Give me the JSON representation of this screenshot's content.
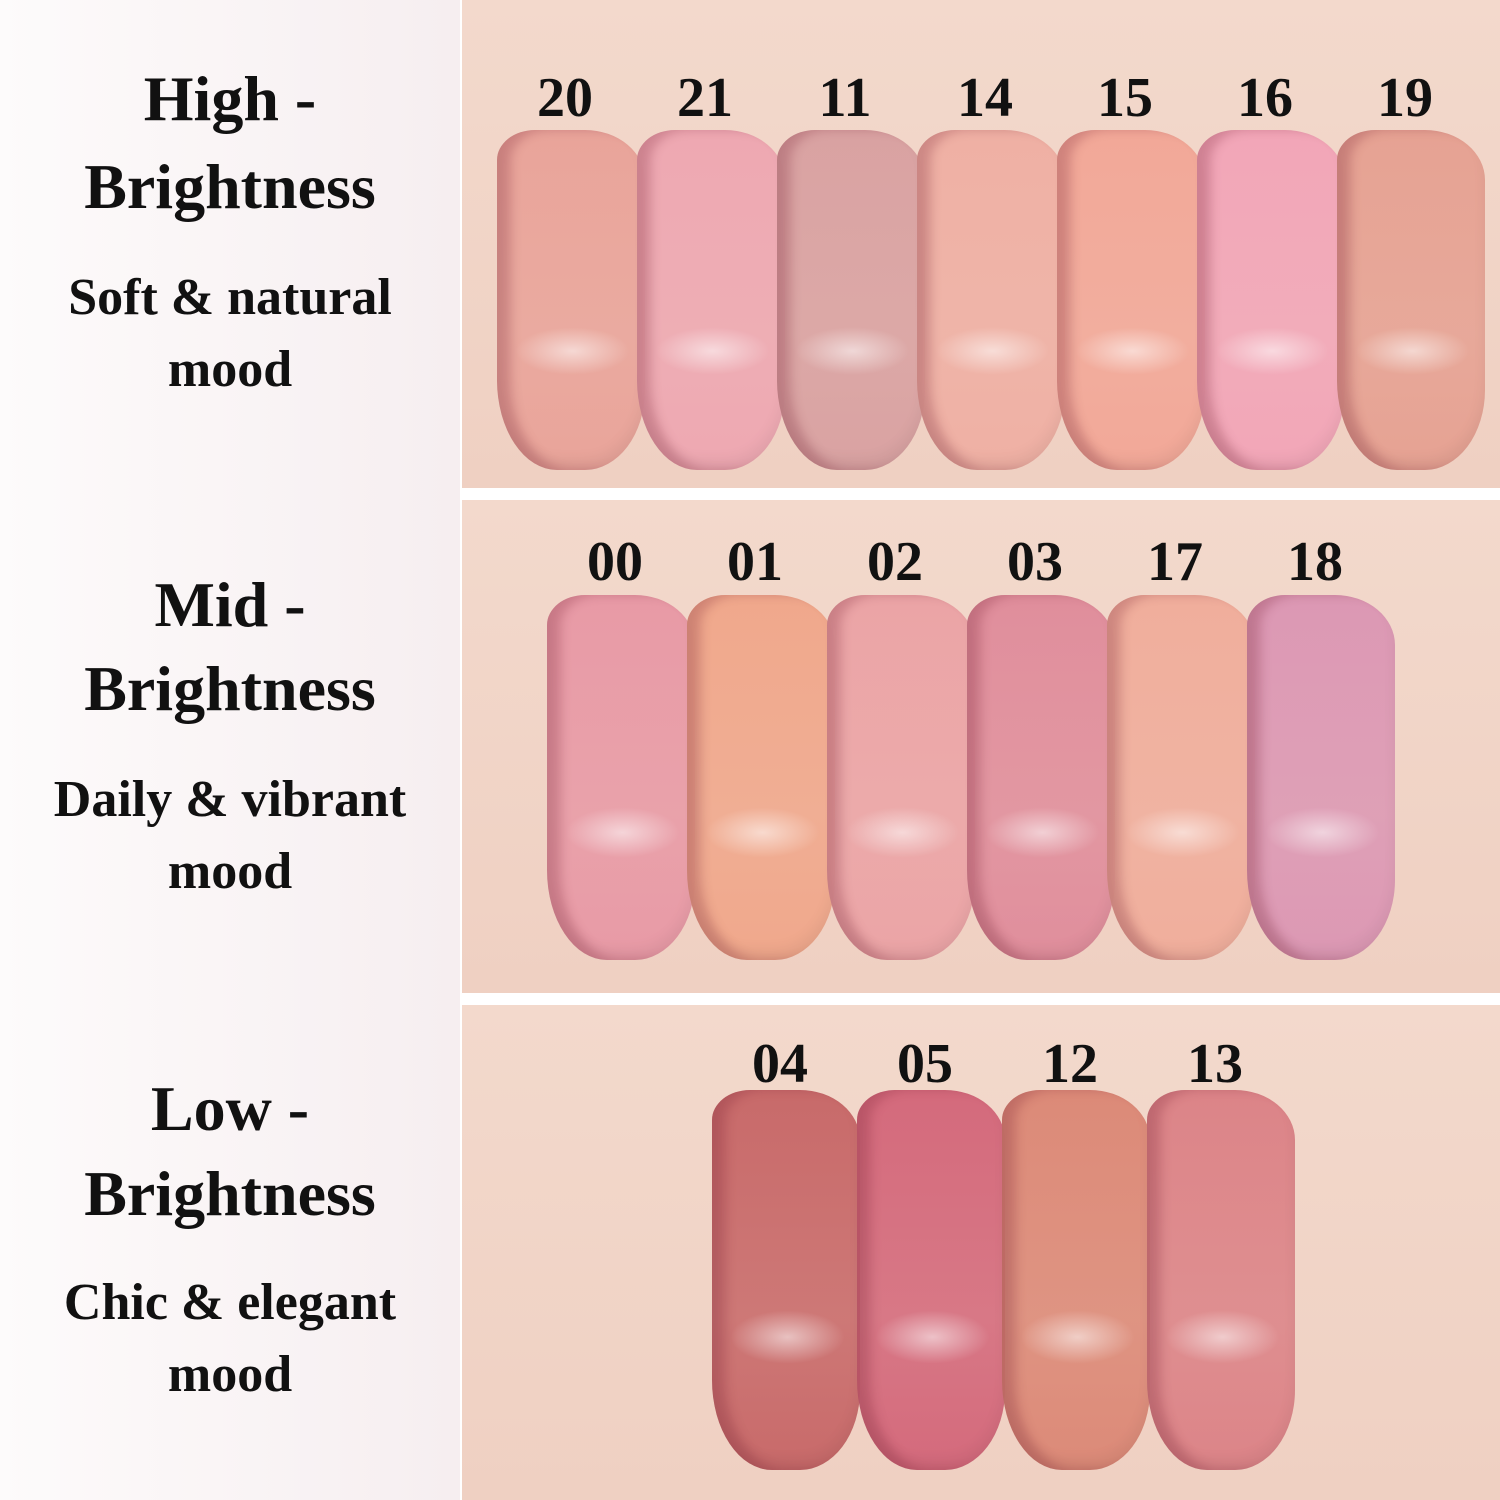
{
  "sections": [
    {
      "title": [
        "High -",
        "Brightness"
      ],
      "subtitle": [
        "Soft & natural",
        "mood"
      ],
      "shades": [
        {
          "number": "20",
          "color": "#e9a49a"
        },
        {
          "number": "21",
          "color": "#eea8b2"
        },
        {
          "number": "11",
          "color": "#d9a2a2"
        },
        {
          "number": "14",
          "color": "#efb0a4"
        },
        {
          "number": "15",
          "color": "#f2a898"
        },
        {
          "number": "16",
          "color": "#f2a6b8"
        },
        {
          "number": "19",
          "color": "#e6a293"
        }
      ]
    },
    {
      "title": [
        "Mid -",
        "Brightness"
      ],
      "subtitle": [
        "Daily & vibrant",
        "mood"
      ],
      "shades": [
        {
          "number": "00",
          "color": "#e89aa6"
        },
        {
          "number": "01",
          "color": "#f0a88c"
        },
        {
          "number": "02",
          "color": "#eba4a6"
        },
        {
          "number": "03",
          "color": "#e08e9c"
        },
        {
          "number": "17",
          "color": "#f0ae9c"
        },
        {
          "number": "18",
          "color": "#dc98b4"
        }
      ]
    },
    {
      "title": [
        "Low -",
        "Brightness"
      ],
      "subtitle": [
        "Chic & elegant",
        "mood"
      ],
      "shades": [
        {
          "number": "04",
          "color": "#c86a6a"
        },
        {
          "number": "05",
          "color": "#d46a7c"
        },
        {
          "number": "12",
          "color": "#dc8a78"
        },
        {
          "number": "13",
          "color": "#dc8488"
        }
      ]
    }
  ]
}
